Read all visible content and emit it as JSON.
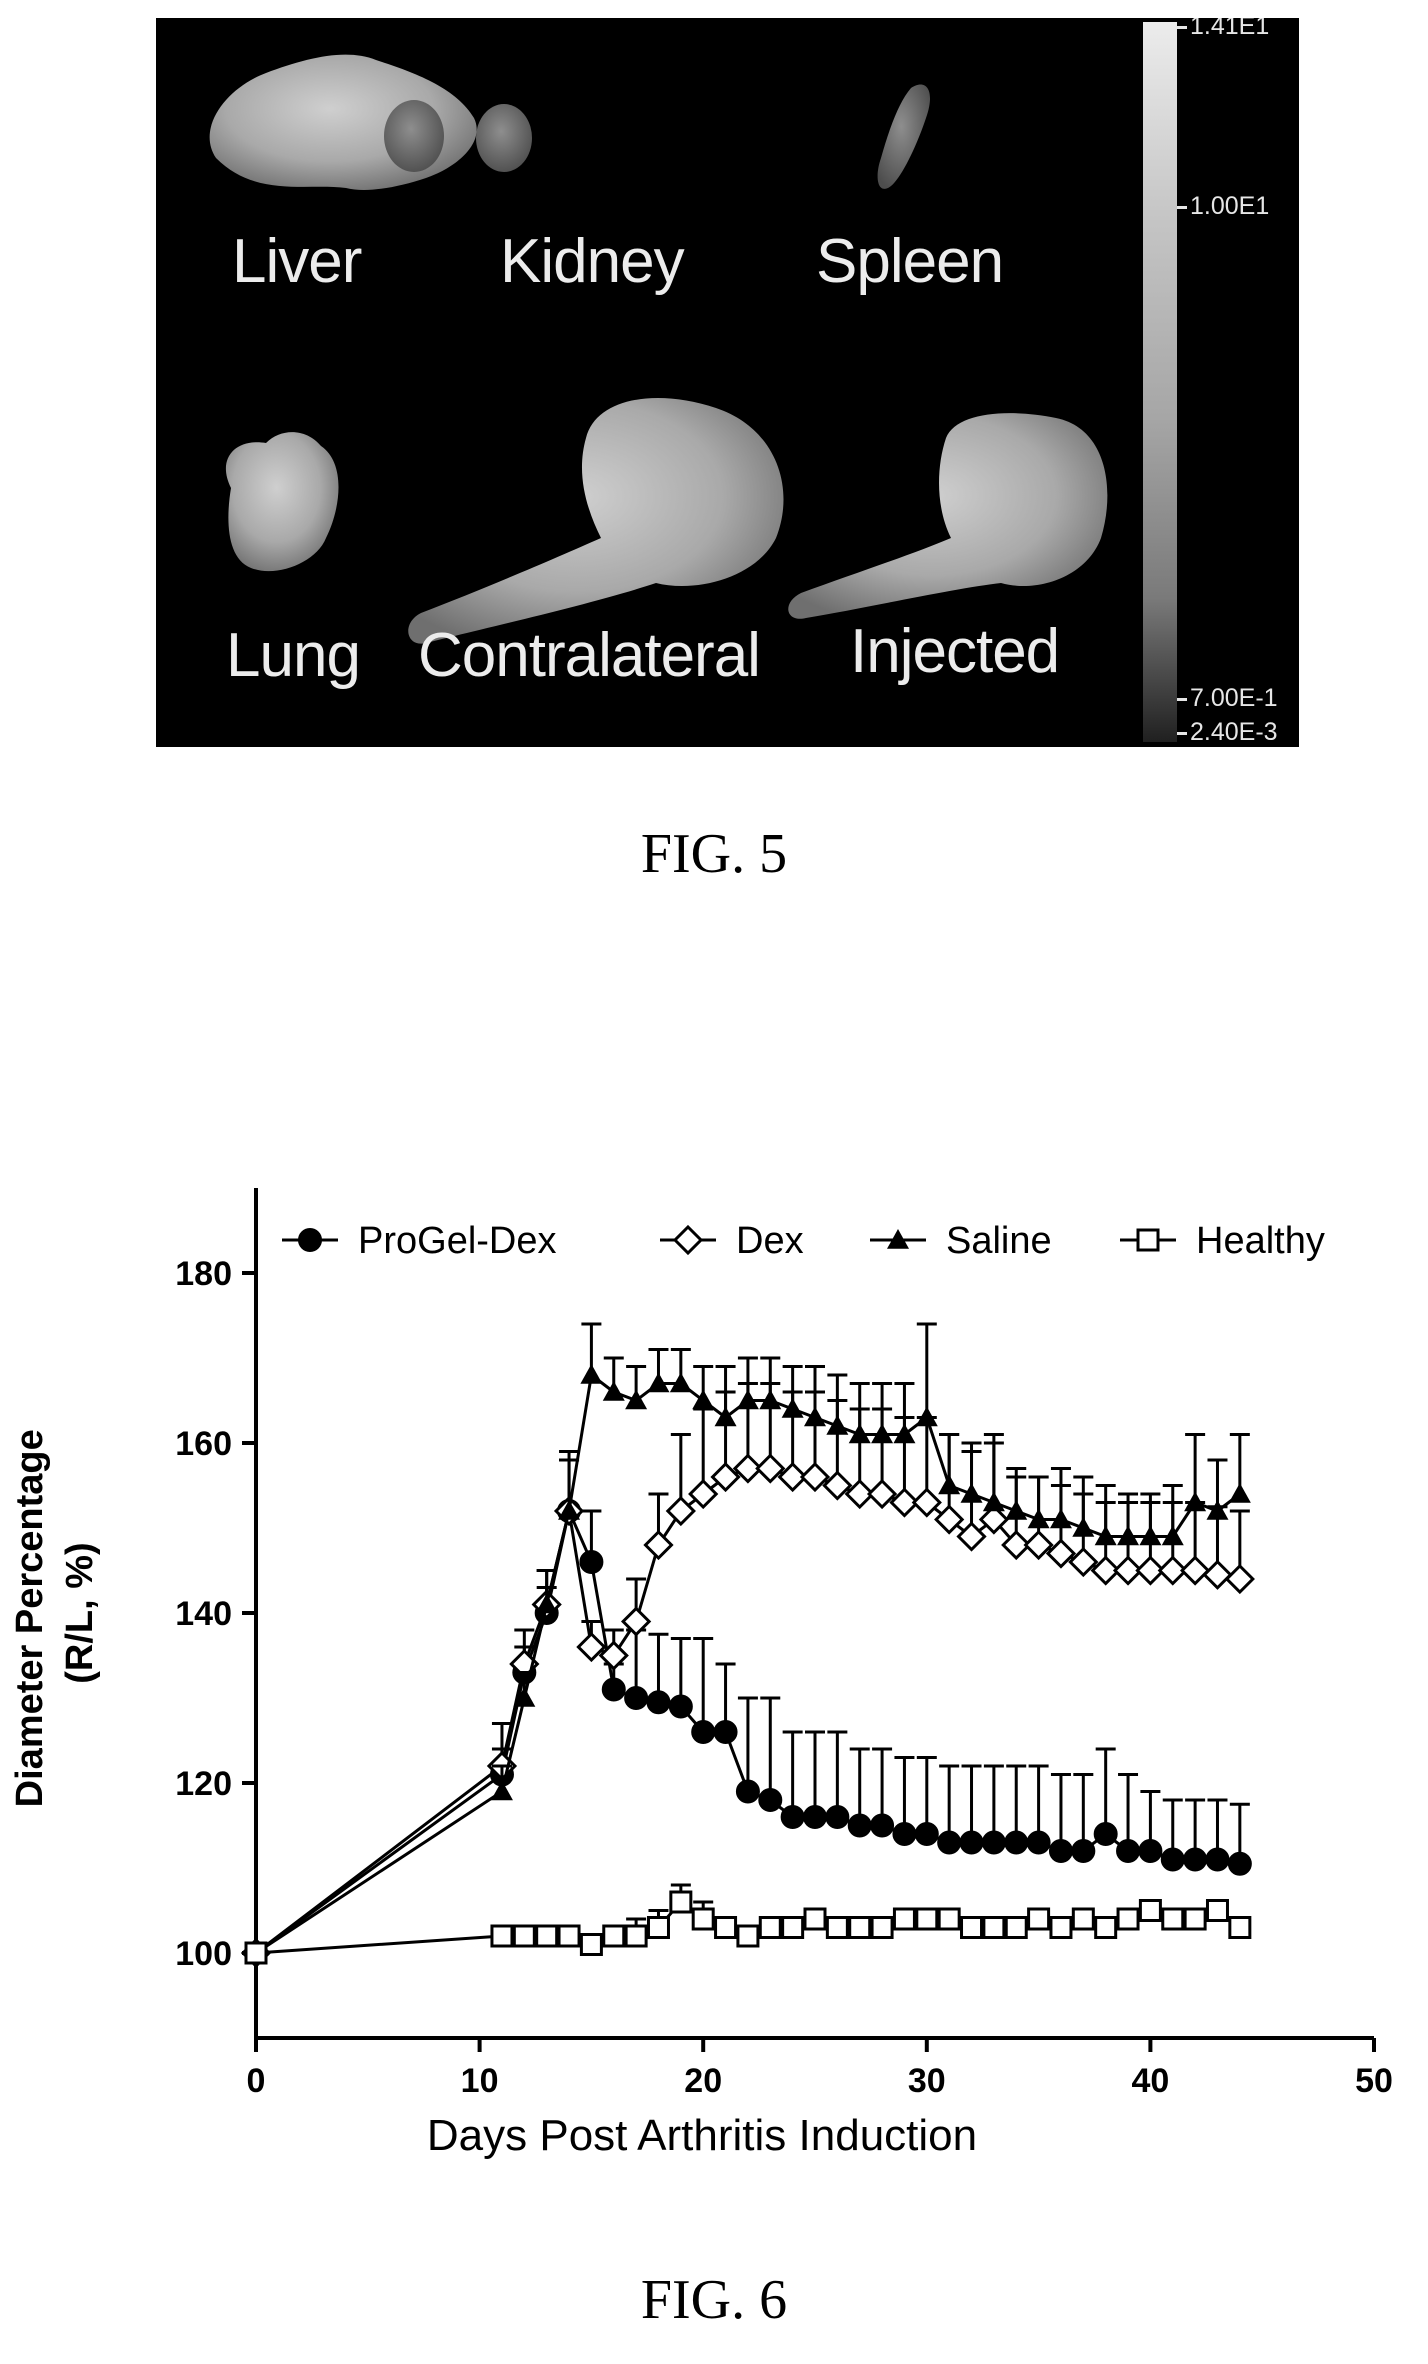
{
  "figure5": {
    "caption": "FIG. 5",
    "organ_labels": {
      "liver": "Liver",
      "kidney": "Kidney",
      "spleen": "Spleen",
      "lung": "Lung",
      "contralateral": "Contralateral",
      "injected": "Injected"
    },
    "scale_labels": [
      "1.41E1",
      "1.00E1",
      "7.00E-1",
      "2.40E-3"
    ]
  },
  "figure6": {
    "caption": "FIG. 6"
  },
  "chart_data": {
    "type": "line",
    "title": "",
    "xlabel": "Days Post Arthritis Induction",
    "ylabel_lines": [
      "Diameter Percentage",
      "(R/L, %)"
    ],
    "xlim": [
      0,
      50
    ],
    "ylim": [
      90,
      190
    ],
    "xticks": [
      0,
      10,
      20,
      30,
      40,
      50
    ],
    "yticks": [
      100,
      120,
      140,
      160,
      180
    ],
    "grid": false,
    "legend_position": "top",
    "x": [
      0,
      11,
      12,
      13,
      14,
      15,
      16,
      17,
      18,
      19,
      20,
      21,
      22,
      23,
      24,
      25,
      26,
      27,
      28,
      29,
      30,
      31,
      32,
      33,
      34,
      35,
      36,
      37,
      38,
      39,
      40,
      41,
      42,
      43,
      44
    ],
    "series": [
      {
        "name": "ProGel-Dex",
        "marker": "filled-circle",
        "values": [
          100,
          121,
          133,
          140,
          152,
          146,
          131,
          130,
          129.5,
          129,
          126,
          126,
          119,
          118,
          116,
          116,
          116,
          115,
          115,
          114,
          114,
          113,
          113,
          113,
          113,
          113,
          112,
          112,
          114,
          112,
          112,
          111,
          111,
          111,
          110.5
        ],
        "errors": [
          0,
          3,
          3,
          3,
          6,
          6,
          3,
          8,
          8,
          8,
          11,
          8,
          11,
          12,
          10,
          10,
          10,
          9,
          9,
          9,
          9,
          9,
          9,
          9,
          9,
          9,
          9,
          9,
          10,
          9,
          7,
          7,
          7,
          7,
          7
        ]
      },
      {
        "name": "Dex",
        "marker": "open-diamond",
        "values": [
          100,
          122,
          134,
          141,
          152,
          136,
          135,
          139,
          148,
          152,
          154,
          156,
          157,
          157,
          156,
          156,
          155,
          154,
          154,
          153,
          153,
          151,
          149,
          151,
          148,
          148,
          147,
          146,
          145,
          145,
          145,
          145,
          145,
          144.5,
          144
        ],
        "errors": [
          0,
          5,
          4,
          4,
          7,
          3,
          3,
          5,
          6,
          9,
          10,
          10,
          10,
          10,
          10,
          10,
          10,
          10,
          10,
          10,
          10,
          10,
          10,
          10,
          8,
          8,
          8,
          8,
          8,
          8,
          8,
          8,
          8,
          8,
          8
        ]
      },
      {
        "name": "Saline",
        "marker": "filled-triangle",
        "values": [
          100,
          119,
          130,
          141,
          152,
          168,
          166,
          165,
          167,
          167,
          165,
          163,
          165,
          165,
          164,
          163,
          162,
          161,
          161,
          161,
          163,
          155,
          154,
          153,
          152,
          151,
          151,
          150,
          149,
          149,
          149,
          149,
          153,
          152,
          154
        ],
        "errors": [
          0,
          3,
          3,
          4,
          6,
          6,
          4,
          4,
          4,
          4,
          4,
          6,
          5,
          5,
          5,
          6,
          6,
          6,
          6,
          6,
          11,
          6,
          6,
          7,
          5,
          5,
          6,
          6,
          6,
          5,
          5,
          6,
          8,
          6,
          7
        ]
      },
      {
        "name": "Healthy",
        "marker": "open-square",
        "values": [
          100,
          102,
          102,
          102,
          102,
          101,
          102,
          102,
          103,
          106,
          104,
          103,
          102,
          103,
          103,
          104,
          103,
          103,
          103,
          104,
          104,
          104,
          103,
          103,
          103,
          104,
          103,
          104,
          103,
          104,
          105,
          104,
          104,
          105,
          103
        ],
        "errors": [
          0,
          1,
          1,
          1,
          1,
          1,
          1,
          2,
          2,
          2,
          2,
          1,
          1,
          1,
          1,
          1,
          1,
          1,
          1,
          1,
          1,
          1,
          1,
          1,
          1,
          1,
          1,
          1,
          1,
          1,
          1,
          1,
          1,
          1,
          1
        ]
      }
    ]
  }
}
